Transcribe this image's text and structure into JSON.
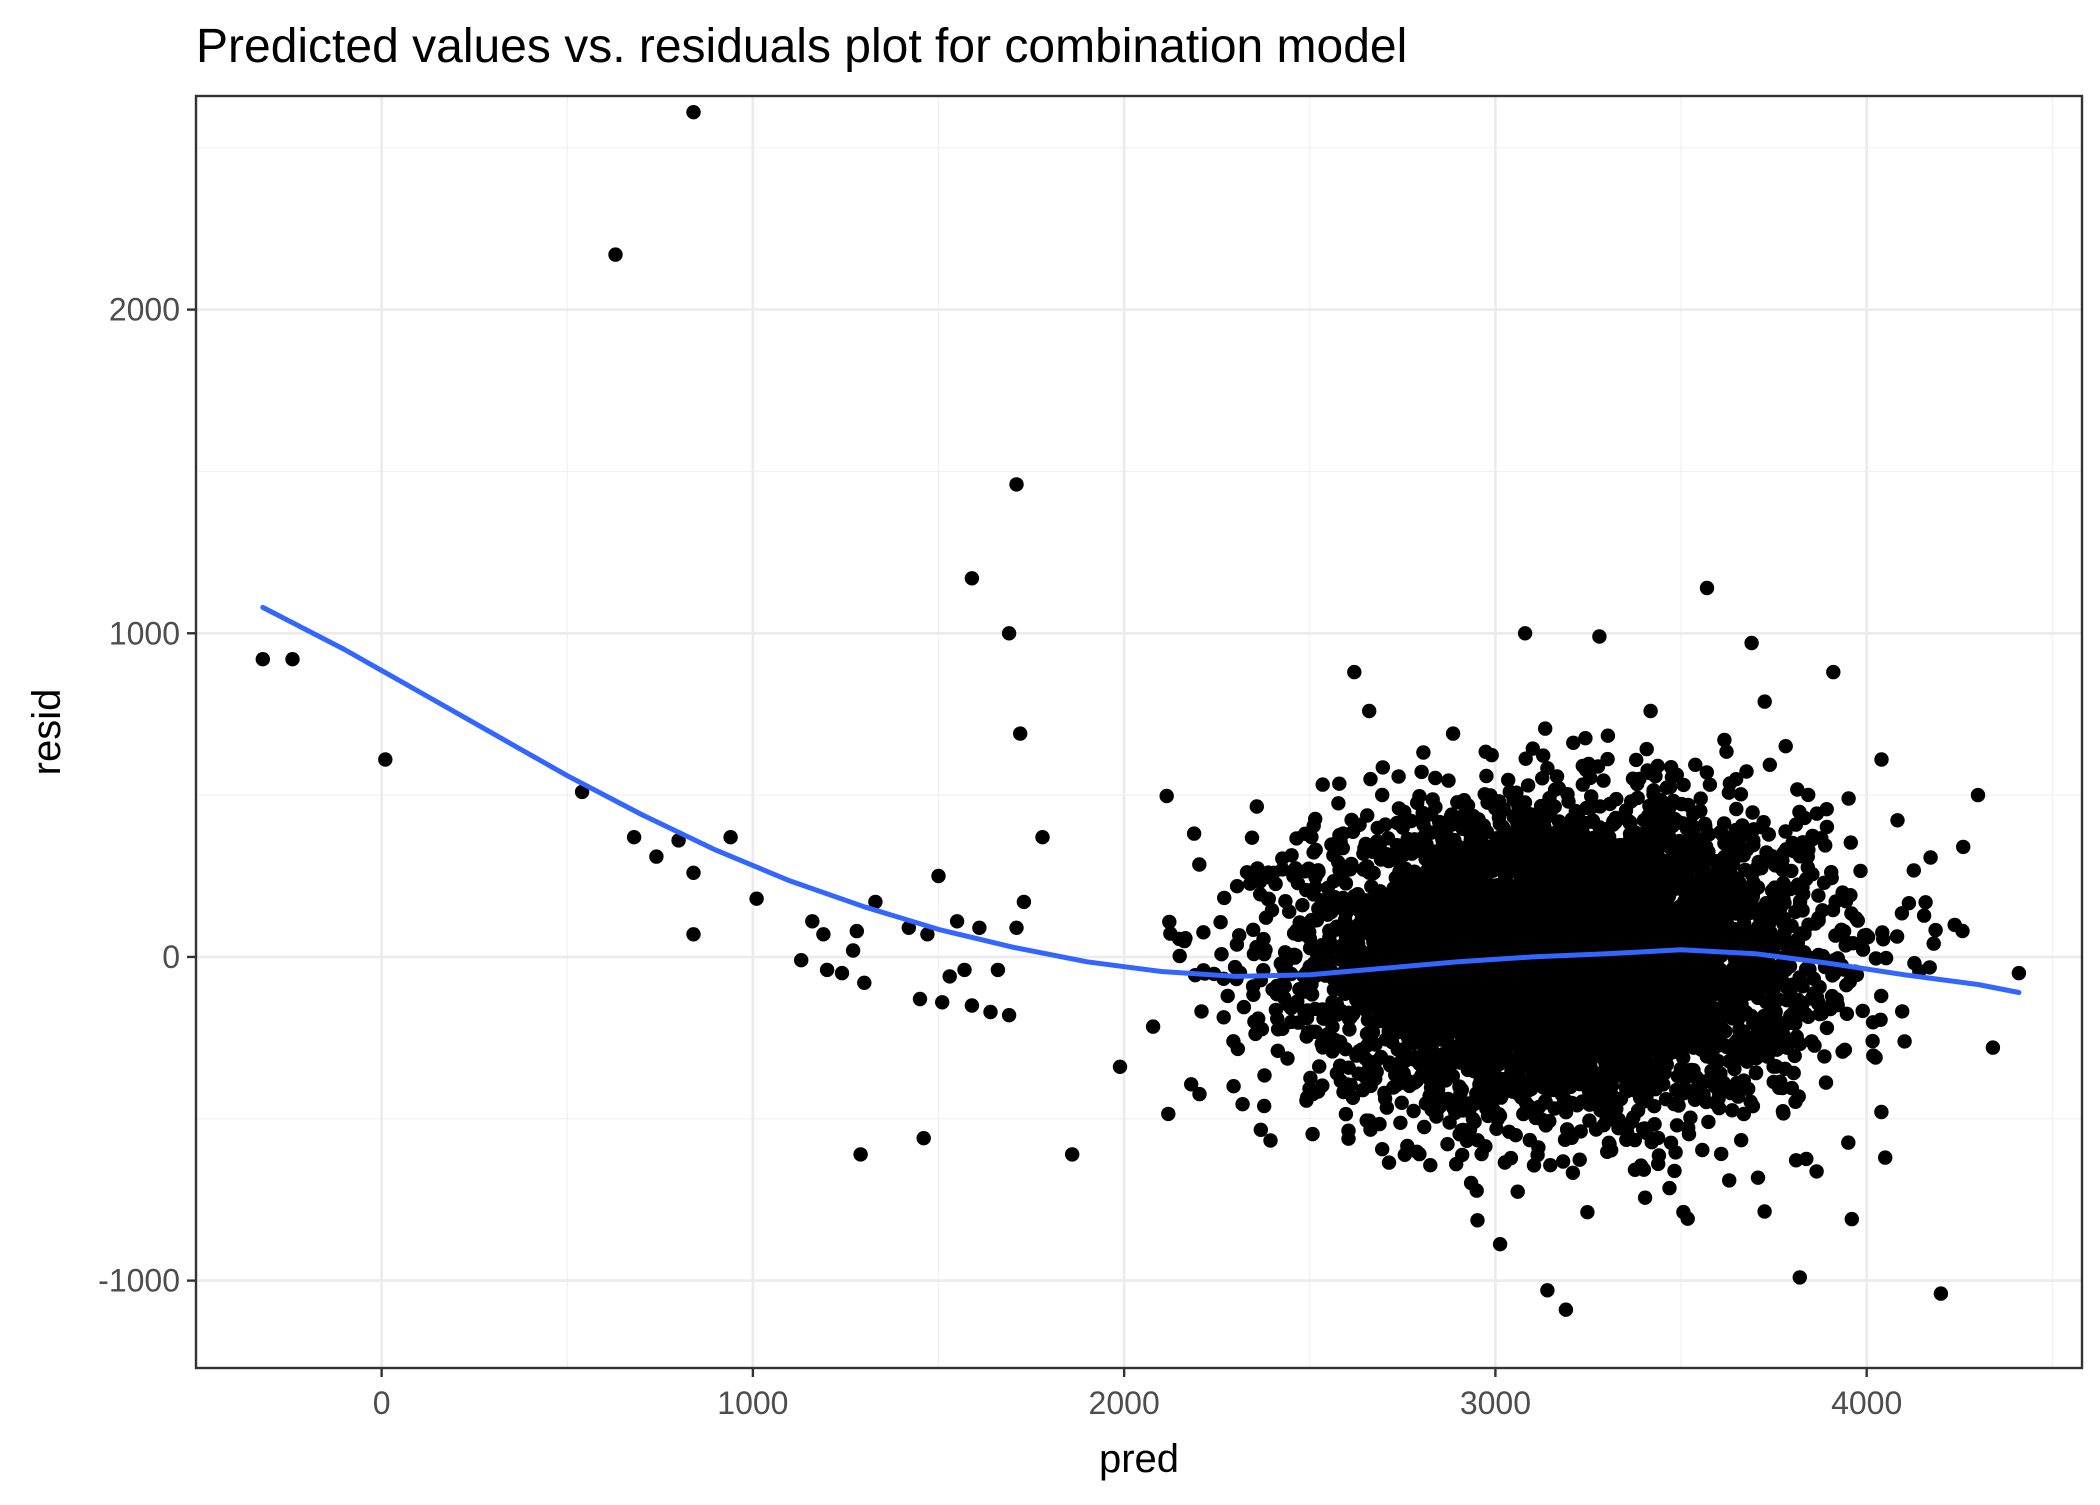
{
  "chart_data": {
    "type": "scatter",
    "title": "Predicted values vs. residuals plot for combination model",
    "xlabel": "pred",
    "ylabel": "resid",
    "xlim": [
      -500,
      4580
    ],
    "ylim": [
      -1270,
      2660
    ],
    "x_ticks": [
      0,
      1000,
      2000,
      3000,
      4000
    ],
    "y_ticks": [
      -1000,
      0,
      1000,
      2000
    ],
    "x_tick_labels": [
      "0",
      "1000",
      "2000",
      "3000",
      "4000"
    ],
    "y_tick_labels": [
      "-1000",
      "0",
      "1000",
      "2000"
    ],
    "grid": true,
    "point_color": "#000000",
    "smooth_color": "#3366FF",
    "points": [
      {
        "x": 840,
        "y": 2610
      },
      {
        "x": 630,
        "y": 2170
      },
      {
        "x": 1710,
        "y": 1460
      },
      {
        "x": 1590,
        "y": 1170
      },
      {
        "x": 1690,
        "y": 1000
      },
      {
        "x": 1720,
        "y": 690
      },
      {
        "x": -320,
        "y": 920
      },
      {
        "x": -240,
        "y": 920
      },
      {
        "x": 10,
        "y": 610
      },
      {
        "x": 540,
        "y": 510
      },
      {
        "x": 680,
        "y": 370
      },
      {
        "x": 740,
        "y": 310
      },
      {
        "x": 800,
        "y": 360
      },
      {
        "x": 840,
        "y": 260
      },
      {
        "x": 940,
        "y": 370
      },
      {
        "x": 840,
        "y": 70
      },
      {
        "x": 1010,
        "y": 180
      },
      {
        "x": 1130,
        "y": -10
      },
      {
        "x": 1160,
        "y": 110
      },
      {
        "x": 1190,
        "y": 70
      },
      {
        "x": 1200,
        "y": -40
      },
      {
        "x": 1240,
        "y": -50
      },
      {
        "x": 1270,
        "y": 20
      },
      {
        "x": 1280,
        "y": 80
      },
      {
        "x": 1300,
        "y": -80
      },
      {
        "x": 1330,
        "y": 170
      },
      {
        "x": 1420,
        "y": 90
      },
      {
        "x": 1450,
        "y": -130
      },
      {
        "x": 1470,
        "y": 70
      },
      {
        "x": 1500,
        "y": 250
      },
      {
        "x": 1510,
        "y": -140
      },
      {
        "x": 1530,
        "y": -60
      },
      {
        "x": 1550,
        "y": 110
      },
      {
        "x": 1570,
        "y": -40
      },
      {
        "x": 1590,
        "y": -150
      },
      {
        "x": 1610,
        "y": 90
      },
      {
        "x": 1640,
        "y": -170
      },
      {
        "x": 1660,
        "y": -40
      },
      {
        "x": 1690,
        "y": -180
      },
      {
        "x": 1710,
        "y": 90
      },
      {
        "x": 1730,
        "y": 170
      },
      {
        "x": 1780,
        "y": 370
      },
      {
        "x": 1290,
        "y": -610
      },
      {
        "x": 1460,
        "y": -560
      },
      {
        "x": 1860,
        "y": -610
      },
      {
        "x": 4410,
        "y": -50
      },
      {
        "x": 4300,
        "y": 500
      },
      {
        "x": 4260,
        "y": 340
      },
      {
        "x": 4200,
        "y": -1040
      },
      {
        "x": 3140,
        "y": -1030
      },
      {
        "x": 3190,
        "y": -1090
      },
      {
        "x": 3570,
        "y": 1140
      },
      {
        "x": 3080,
        "y": 1000
      },
      {
        "x": 3280,
        "y": 990
      },
      {
        "x": 3690,
        "y": 970
      },
      {
        "x": 3910,
        "y": 880
      },
      {
        "x": 2620,
        "y": 880
      },
      {
        "x": 3820,
        "y": -990
      },
      {
        "x": 2660,
        "y": 760
      },
      {
        "x": 4040,
        "y": 610
      },
      {
        "x": 4340,
        "y": -280
      },
      {
        "x": 3960,
        "y": -810
      },
      {
        "x": 4050,
        "y": -620
      }
    ],
    "smooth": [
      {
        "x": -320,
        "y": 1080
      },
      {
        "x": -100,
        "y": 950
      },
      {
        "x": 100,
        "y": 820
      },
      {
        "x": 300,
        "y": 690
      },
      {
        "x": 500,
        "y": 560
      },
      {
        "x": 700,
        "y": 440
      },
      {
        "x": 900,
        "y": 330
      },
      {
        "x": 1100,
        "y": 235
      },
      {
        "x": 1300,
        "y": 155
      },
      {
        "x": 1500,
        "y": 85
      },
      {
        "x": 1700,
        "y": 30
      },
      {
        "x": 1900,
        "y": -15
      },
      {
        "x": 2100,
        "y": -45
      },
      {
        "x": 2300,
        "y": -60
      },
      {
        "x": 2500,
        "y": -55
      },
      {
        "x": 2700,
        "y": -35
      },
      {
        "x": 2900,
        "y": -15
      },
      {
        "x": 3100,
        "y": 0
      },
      {
        "x": 3300,
        "y": 10
      },
      {
        "x": 3500,
        "y": 22
      },
      {
        "x": 3700,
        "y": 10
      },
      {
        "x": 3900,
        "y": -20
      },
      {
        "x": 4100,
        "y": -55
      },
      {
        "x": 4300,
        "y": -85
      },
      {
        "x": 4410,
        "y": -110
      }
    ],
    "cluster": {
      "n": 6000,
      "x_mean": 3180,
      "x_sd": 330,
      "y_mean": 0,
      "y_sd": 230,
      "seed": 12345
    }
  }
}
